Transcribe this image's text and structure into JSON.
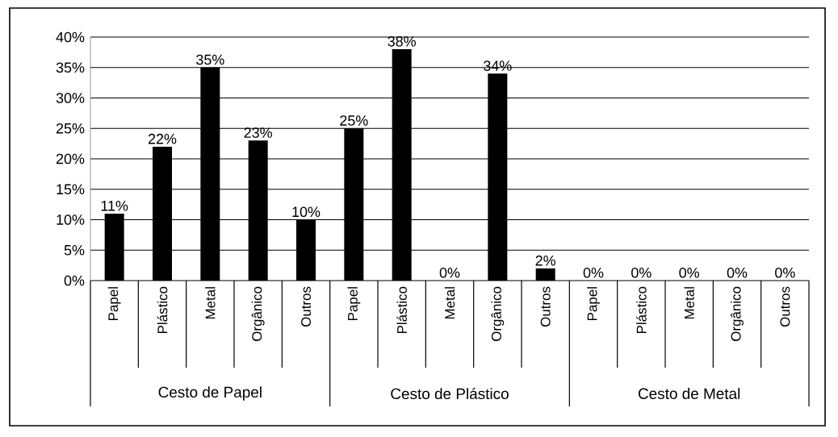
{
  "chart_data": {
    "type": "bar",
    "categories": [
      "Papel",
      "Plástico",
      "Metal",
      "Orgânico",
      "Outros",
      "Papel",
      "Plástico",
      "Metal",
      "Orgânico",
      "Outros",
      "Papel",
      "Plástico",
      "Metal",
      "Orgânico",
      "Outros"
    ],
    "values": [
      11,
      22,
      35,
      23,
      10,
      25,
      38,
      0,
      34,
      2,
      0,
      0,
      0,
      0,
      0
    ],
    "value_labels": [
      "11%",
      "22%",
      "35%",
      "23%",
      "10%",
      "25%",
      "38%",
      "0%",
      "34%",
      "2%",
      "0%",
      "0%",
      "0%",
      "0%",
      "0%"
    ],
    "color": "#000000",
    "ylim": [
      0,
      40
    ],
    "yticks": [
      {
        "value": 0,
        "label": "0%"
      },
      {
        "value": 5,
        "label": "5%"
      },
      {
        "value": 10,
        "label": "10%"
      },
      {
        "value": 15,
        "label": "15%"
      },
      {
        "value": 20,
        "label": "20%"
      },
      {
        "value": 25,
        "label": "25%"
      },
      {
        "value": 30,
        "label": "30%"
      },
      {
        "value": 35,
        "label": "35%"
      },
      {
        "value": 40,
        "label": "40%"
      }
    ],
    "grid": "y",
    "annotations": [
      "Cesto de Papel",
      "Cesto de Plástico",
      "Cesto de Metal"
    ]
  }
}
